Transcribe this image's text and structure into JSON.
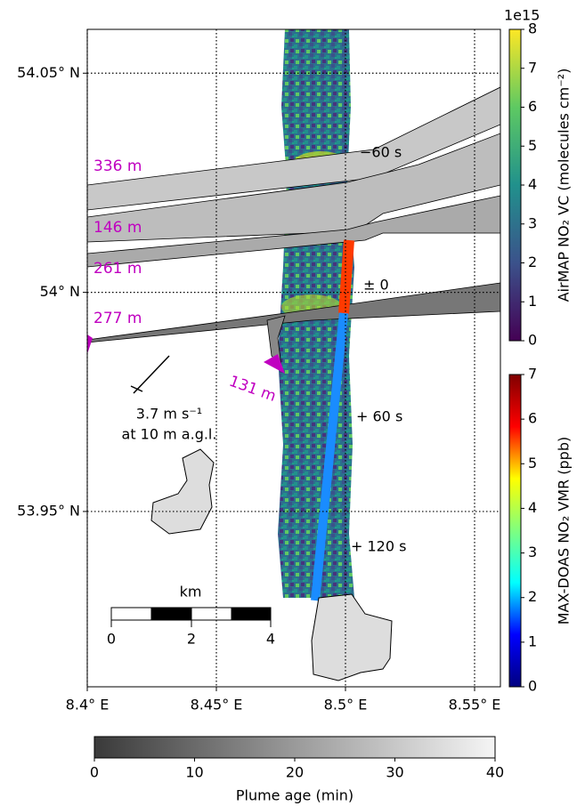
{
  "chart_data": {
    "type": "map",
    "xlim": [
      8.4,
      8.56
    ],
    "ylim": [
      53.91,
      54.06
    ],
    "xticks": [
      {
        "value": 8.4,
        "label": "8.4° E"
      },
      {
        "value": 8.45,
        "label": "8.45° E"
      },
      {
        "value": 8.5,
        "label": "8.5° E"
      },
      {
        "value": 8.55,
        "label": "8.55° E"
      }
    ],
    "yticks": [
      {
        "value": 53.95,
        "label": "53.95° N"
      },
      {
        "value": 54.0,
        "label": "54° N"
      },
      {
        "value": 54.05,
        "label": "54.05° N"
      }
    ],
    "grid": true,
    "annotations": [
      "336 m",
      "146 m",
      "261 m",
      "277 m",
      "131 m",
      "−60 s",
      "± 0",
      "+ 60 s",
      "+ 120 s",
      "3.7 m s⁻¹",
      "at 10 m a.g.l.",
      "km",
      "0",
      "2",
      "4"
    ],
    "colorbars": [
      {
        "label": "AirMAP NO₂ VC (molecules cm⁻²)",
        "offset_label": "1e15",
        "orientation": "vertical",
        "lim": [
          0,
          8
        ],
        "ticks": [
          0,
          1,
          2,
          3,
          4,
          5,
          6,
          7,
          8
        ],
        "colormap": [
          "#440154",
          "#3b528b",
          "#21918c",
          "#5ec962",
          "#fde725"
        ]
      },
      {
        "label": "MAX-DOAS NO₂ VMR (ppb)",
        "orientation": "vertical",
        "lim": [
          0,
          7
        ],
        "ticks": [
          0,
          1,
          2,
          3,
          4,
          5,
          6,
          7
        ],
        "colormap": [
          "#00007f",
          "#0000ff",
          "#00ffff",
          "#7fff7f",
          "#ffff00",
          "#ff0000",
          "#7f0000"
        ]
      },
      {
        "label": "Plume age (min)",
        "orientation": "horizontal",
        "lim": [
          0,
          40
        ],
        "ticks": [
          0,
          10,
          20,
          30,
          40
        ],
        "colormap": [
          "#3a3a3a",
          "#9a9a9a",
          "#f5f5f5"
        ]
      }
    ]
  }
}
